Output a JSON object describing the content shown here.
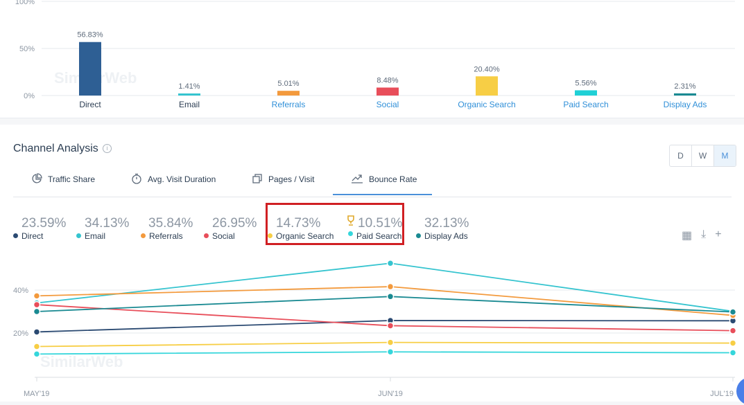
{
  "top_chart": {
    "y_axis_labels": [
      "100%",
      "50%",
      "0%"
    ],
    "watermark": "SimilarWeb"
  },
  "section": {
    "title": "Channel Analysis",
    "granularity": [
      "D",
      "W",
      "M"
    ],
    "tabs": [
      "Traffic Share",
      "Avg. Visit Duration",
      "Pages / Visit",
      "Bounce Rate"
    ],
    "active_tab": "Bounce Rate"
  },
  "metrics": [
    {
      "value": "23.59%",
      "label": "Direct",
      "color": "#2b4a72"
    },
    {
      "value": "34.13%",
      "label": "Email",
      "color": "#35c4cf"
    },
    {
      "value": "35.84%",
      "label": "Referrals",
      "color": "#f39a3d"
    },
    {
      "value": "26.95%",
      "label": "Social",
      "color": "#e84e5a"
    },
    {
      "value": "14.73%",
      "label": "Organic Search",
      "color": "#f7ce45"
    },
    {
      "value": "10.51%",
      "label": "Paid Search",
      "color": "#35d6db"
    },
    {
      "value": "32.13%",
      "label": "Display Ads",
      "color": "#1a8a92"
    }
  ],
  "line_chart": {
    "y_axis_labels": [
      "40%",
      "20%"
    ],
    "watermark": "SimilarWeb"
  },
  "chart_data": [
    {
      "type": "bar",
      "title": "",
      "categories": [
        "Direct",
        "Email",
        "Referrals",
        "Social",
        "Organic Search",
        "Paid Search",
        "Display Ads"
      ],
      "values": [
        56.83,
        1.41,
        5.01,
        8.48,
        20.4,
        5.56,
        2.31
      ],
      "data_labels": [
        "56.83%",
        "1.41%",
        "5.01%",
        "8.48%",
        "20.40%",
        "5.56%",
        "2.31%"
      ],
      "colors": [
        "#2e5f94",
        "#35c4cf",
        "#f39a3d",
        "#e84e5a",
        "#f7ce45",
        "#1fd0d6",
        "#1a8a92"
      ],
      "category_label_colors": [
        "#2b3d52",
        "#2b3d52",
        "#2f8fd8",
        "#2f8fd8",
        "#2f8fd8",
        "#2f8fd8",
        "#2f8fd8"
      ],
      "ylim": [
        0,
        100
      ],
      "grid": true
    },
    {
      "type": "line",
      "title": "",
      "x": [
        "MAY'19",
        "JUN'19",
        "JUL'19"
      ],
      "ylim": [
        0,
        50
      ],
      "grid": true,
      "series": [
        {
          "name": "Direct",
          "color": "#2b4a72",
          "values": [
            20.5,
            25.8,
            25.7
          ]
        },
        {
          "name": "Email",
          "color": "#35c4cf",
          "values": [
            34,
            52.5,
            30.1
          ]
        },
        {
          "name": "Referrals",
          "color": "#f39a3d",
          "values": [
            37.3,
            41.6,
            28.2
          ]
        },
        {
          "name": "Social",
          "color": "#e84e5a",
          "values": [
            33.2,
            23.4,
            21.1
          ]
        },
        {
          "name": "Organic Search",
          "color": "#f7ce45",
          "values": [
            13.7,
            15.6,
            15.3
          ]
        },
        {
          "name": "Paid Search",
          "color": "#35d6db",
          "values": [
            10.2,
            11.2,
            10.8
          ]
        },
        {
          "name": "Display Ads",
          "color": "#1a8a92",
          "values": [
            30,
            37,
            29.8
          ]
        }
      ]
    }
  ]
}
